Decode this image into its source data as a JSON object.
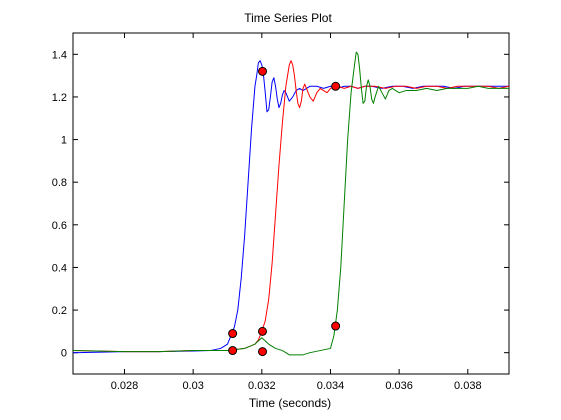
{
  "chart_data": {
    "type": "line",
    "title": "Time Series Plot",
    "xlabel": "Time (seconds)",
    "ylabel": "",
    "xlim": [
      0.0265,
      0.0392
    ],
    "ylim": [
      -0.1,
      1.5
    ],
    "grid": false,
    "x_ticks": [
      0.028,
      0.03,
      0.032,
      0.034,
      0.036,
      0.038
    ],
    "x_tick_labels": [
      "0.028",
      "0.03",
      "0.032",
      "0.034",
      "0.036",
      "0.038"
    ],
    "y_ticks": [
      0,
      0.2,
      0.4,
      0.6,
      0.8,
      1,
      1.2,
      1.4
    ],
    "y_tick_labels": [
      "0",
      "0.2",
      "0.4",
      "0.6",
      "0.8",
      "1",
      "1.2",
      "1.4"
    ],
    "series": [
      {
        "color": "#0000ff",
        "x": [
          0.0265,
          0.028,
          0.029,
          0.03,
          0.0305,
          0.0308,
          0.031,
          0.0311,
          0.0312,
          0.0313,
          0.0314,
          0.0315,
          0.0316,
          0.0317,
          0.0318,
          0.03185,
          0.0319,
          0.03195,
          0.032,
          0.03205,
          0.0321,
          0.03215,
          0.0322,
          0.03225,
          0.0323,
          0.03235,
          0.0324,
          0.03245,
          0.0325,
          0.03255,
          0.0326,
          0.03265,
          0.0327,
          0.03275,
          0.0328,
          0.0329,
          0.033,
          0.0331,
          0.0332,
          0.0334,
          0.0336,
          0.0338,
          0.034,
          0.0342,
          0.0344,
          0.0346,
          0.0348,
          0.035,
          0.0352,
          0.0355,
          0.0358,
          0.0361,
          0.0364,
          0.0367,
          0.037,
          0.0373,
          0.0376,
          0.0379,
          0.0382,
          0.0385,
          0.0388,
          0.0392
        ],
        "y": [
          0.0,
          0.005,
          0.005,
          0.008,
          0.01,
          0.02,
          0.04,
          0.08,
          0.12,
          0.2,
          0.35,
          0.55,
          0.8,
          1.05,
          1.25,
          1.3,
          1.36,
          1.37,
          1.35,
          1.3,
          1.22,
          1.13,
          1.14,
          1.2,
          1.27,
          1.29,
          1.25,
          1.19,
          1.15,
          1.17,
          1.21,
          1.23,
          1.22,
          1.2,
          1.18,
          1.2,
          1.23,
          1.24,
          1.23,
          1.25,
          1.25,
          1.24,
          1.25,
          1.24,
          1.25,
          1.25,
          1.24,
          1.25,
          1.25,
          1.24,
          1.25,
          1.25,
          1.24,
          1.25,
          1.25,
          1.25,
          1.24,
          1.25,
          1.25,
          1.25,
          1.25,
          1.25
        ]
      },
      {
        "color": "#ff0000",
        "x": [
          0.0265,
          0.028,
          0.029,
          0.03,
          0.031,
          0.0315,
          0.0318,
          0.0319,
          0.032,
          0.0321,
          0.0322,
          0.0323,
          0.0324,
          0.0325,
          0.0326,
          0.0327,
          0.03275,
          0.0328,
          0.03285,
          0.0329,
          0.03295,
          0.033,
          0.03305,
          0.0331,
          0.03315,
          0.0332,
          0.03325,
          0.0333,
          0.0334,
          0.0335,
          0.0336,
          0.0337,
          0.0338,
          0.0339,
          0.034,
          0.0342,
          0.0344,
          0.0346,
          0.0348,
          0.035,
          0.0353,
          0.0356,
          0.0359,
          0.0362,
          0.0365,
          0.0368,
          0.0371,
          0.0374,
          0.0377,
          0.038,
          0.0383,
          0.0386,
          0.0389,
          0.0392
        ],
        "y": [
          0.01,
          0.005,
          0.005,
          0.01,
          0.01,
          0.02,
          0.04,
          0.06,
          0.1,
          0.15,
          0.25,
          0.42,
          0.65,
          0.88,
          1.08,
          1.25,
          1.3,
          1.35,
          1.37,
          1.35,
          1.3,
          1.23,
          1.17,
          1.15,
          1.18,
          1.24,
          1.26,
          1.24,
          1.2,
          1.18,
          1.22,
          1.24,
          1.23,
          1.22,
          1.24,
          1.25,
          1.24,
          1.25,
          1.24,
          1.25,
          1.25,
          1.24,
          1.25,
          1.25,
          1.24,
          1.25,
          1.25,
          1.24,
          1.25,
          1.25,
          1.25,
          1.25,
          1.24,
          1.25
        ]
      },
      {
        "color": "#008000",
        "x": [
          0.0265,
          0.028,
          0.029,
          0.03,
          0.031,
          0.0315,
          0.0318,
          0.032,
          0.0322,
          0.0324,
          0.0326,
          0.0328,
          0.033,
          0.0332,
          0.0334,
          0.034,
          0.0341,
          0.0342,
          0.0343,
          0.0344,
          0.0345,
          0.0346,
          0.0347,
          0.03475,
          0.0348,
          0.03485,
          0.0349,
          0.03495,
          0.035,
          0.03505,
          0.0351,
          0.03515,
          0.0352,
          0.03525,
          0.0353,
          0.0354,
          0.0355,
          0.0356,
          0.0357,
          0.0358,
          0.036,
          0.0362,
          0.0365,
          0.0368,
          0.0371,
          0.0374,
          0.0377,
          0.038,
          0.0383,
          0.0386,
          0.0389,
          0.0392
        ],
        "y": [
          0.01,
          0.005,
          0.005,
          0.01,
          0.01,
          0.02,
          0.04,
          0.07,
          0.04,
          0.02,
          0.01,
          -0.01,
          -0.01,
          -0.01,
          0.0,
          0.02,
          0.08,
          0.2,
          0.4,
          0.7,
          1.0,
          1.22,
          1.35,
          1.41,
          1.4,
          1.33,
          1.24,
          1.17,
          1.18,
          1.25,
          1.28,
          1.25,
          1.19,
          1.17,
          1.2,
          1.25,
          1.22,
          1.19,
          1.23,
          1.24,
          1.22,
          1.23,
          1.23,
          1.24,
          1.23,
          1.24,
          1.24,
          1.24,
          1.25,
          1.24,
          1.24,
          1.24
        ]
      }
    ],
    "markers": {
      "color": "#ff0000",
      "points": [
        {
          "x": 0.03115,
          "y": 0.09
        },
        {
          "x": 0.03115,
          "y": 0.01
        },
        {
          "x": 0.03202,
          "y": 0.1
        },
        {
          "x": 0.03202,
          "y": 0.005
        },
        {
          "x": 0.03202,
          "y": 1.32
        },
        {
          "x": 0.03415,
          "y": 0.125
        },
        {
          "x": 0.03415,
          "y": 1.25
        }
      ]
    }
  }
}
